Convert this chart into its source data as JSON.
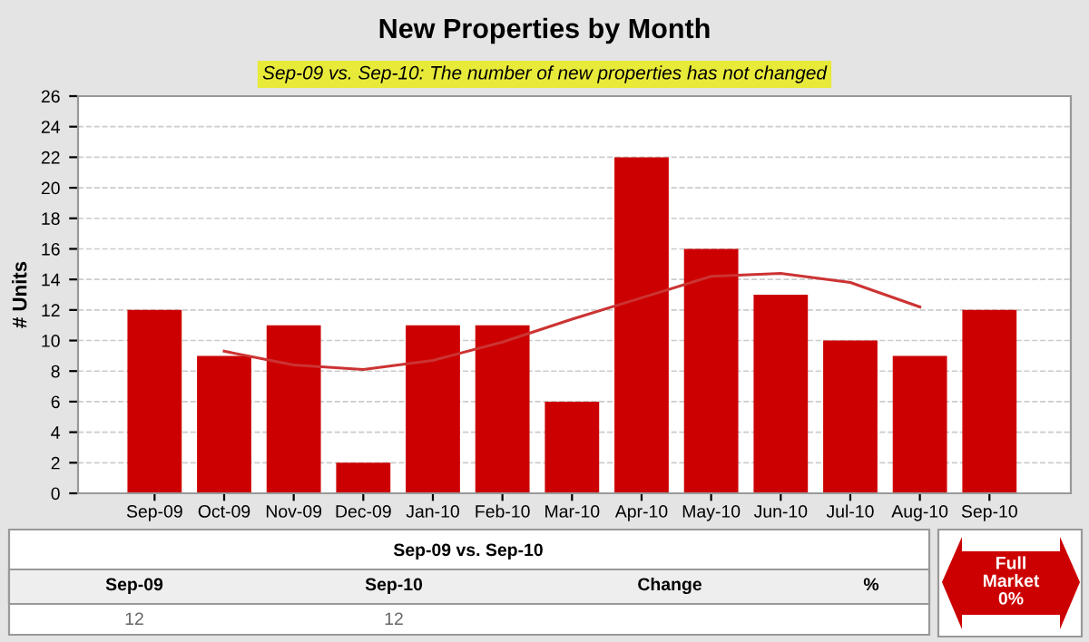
{
  "chart_data": {
    "type": "bar",
    "title": "New Properties by Month",
    "subtitle": "Sep-09 vs. Sep-10: The number of new properties has not changed",
    "ylabel": "# Units",
    "categories": [
      "Sep-09",
      "Oct-09",
      "Nov-09",
      "Dec-09",
      "Jan-10",
      "Feb-10",
      "Mar-10",
      "Apr-10",
      "May-10",
      "Jun-10",
      "Jul-10",
      "Aug-10",
      "Sep-10"
    ],
    "series": [
      {
        "color": "#cc0000",
        "values": [
          12,
          9,
          11,
          2,
          11,
          11,
          6,
          22,
          16,
          13,
          10,
          9,
          12
        ]
      },
      {
        "type": "line",
        "color": "#cc3333",
        "values": [
          null,
          9.3,
          8.4,
          8.1,
          8.7,
          9.9,
          11.4,
          12.8,
          14.2,
          14.4,
          13.8,
          12.2,
          null
        ]
      }
    ],
    "ylim": [
      0,
      26
    ],
    "yticks": [
      0,
      2,
      4,
      6,
      8,
      10,
      12,
      14,
      16,
      18,
      20,
      22,
      24,
      26
    ],
    "grid": "y",
    "line_style": "solid",
    "legend": false,
    "annotations": [
      "Sep-09 vs. Sep-10",
      "Sep-09",
      "Sep-10",
      "Change",
      "%",
      "12",
      "12",
      "Full\nMarket\n0%"
    ]
  }
}
